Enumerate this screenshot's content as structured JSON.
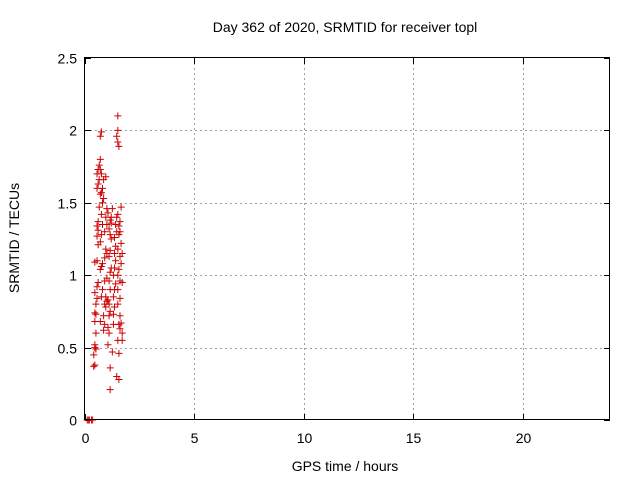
{
  "chart_data": {
    "type": "scatter",
    "title": "Day 362 of 2020, SRMTID for receiver topl",
    "xlabel": "GPS time / hours",
    "ylabel": "SRMTID / TECUs",
    "xlim": [
      0,
      24
    ],
    "ylim": [
      0,
      2.5
    ],
    "x_ticks": [
      0,
      5,
      10,
      15,
      20
    ],
    "x_tick_labels": [
      "0",
      "5",
      "10",
      "15",
      "20"
    ],
    "y_ticks": [
      0,
      0.5,
      1,
      1.5,
      2,
      2.5
    ],
    "y_tick_labels": [
      "0",
      "0.5",
      "1",
      "1.5",
      "2",
      "2.5"
    ],
    "grid": true,
    "marker": "+",
    "series": [
      {
        "name": "SRMTID",
        "color": "#cc0000",
        "points": [
          [
            0.1,
            0.0
          ],
          [
            0.15,
            0.0
          ],
          [
            0.2,
            0.0
          ],
          [
            0.3,
            0.0
          ],
          [
            0.35,
            0.0
          ],
          [
            0.4,
            0.37
          ],
          [
            0.45,
            0.38
          ],
          [
            0.4,
            0.45
          ],
          [
            0.45,
            0.5
          ],
          [
            0.5,
            0.49
          ],
          [
            0.45,
            0.52
          ],
          [
            0.5,
            0.6
          ],
          [
            0.45,
            0.68
          ],
          [
            0.5,
            0.73
          ],
          [
            0.45,
            0.74
          ],
          [
            0.5,
            0.8
          ],
          [
            0.55,
            0.84
          ],
          [
            0.45,
            0.88
          ],
          [
            0.55,
            0.92
          ],
          [
            0.6,
            0.95
          ],
          [
            0.45,
            1.09
          ],
          [
            0.55,
            1.1
          ],
          [
            0.6,
            1.21
          ],
          [
            0.55,
            1.27
          ],
          [
            0.6,
            1.31
          ],
          [
            0.55,
            1.34
          ],
          [
            0.6,
            1.37
          ],
          [
            0.65,
            1.47
          ],
          [
            0.55,
            1.6
          ],
          [
            0.6,
            1.63
          ],
          [
            0.65,
            1.66
          ],
          [
            0.55,
            1.7
          ],
          [
            0.6,
            1.73
          ],
          [
            0.65,
            1.76
          ],
          [
            0.7,
            1.8
          ],
          [
            0.7,
            1.73
          ],
          [
            0.75,
            1.7
          ],
          [
            0.7,
            1.96
          ],
          [
            0.75,
            1.99
          ],
          [
            0.7,
            0.68
          ],
          [
            0.75,
            0.85
          ],
          [
            0.8,
            0.9
          ],
          [
            0.7,
            1.04
          ],
          [
            0.75,
            1.06
          ],
          [
            0.8,
            1.08
          ],
          [
            0.7,
            1.23
          ],
          [
            0.75,
            1.28
          ],
          [
            0.8,
            1.35
          ],
          [
            0.75,
            1.42
          ],
          [
            0.8,
            1.5
          ],
          [
            0.85,
            1.53
          ],
          [
            0.7,
            1.56
          ],
          [
            0.8,
            1.6
          ],
          [
            0.85,
            1.66
          ],
          [
            0.75,
            1.57
          ],
          [
            0.85,
            0.62
          ],
          [
            0.9,
            0.66
          ],
          [
            0.85,
            0.72
          ],
          [
            0.95,
            0.78
          ],
          [
            0.9,
            0.8
          ],
          [
            1.0,
            0.82
          ],
          [
            0.95,
            0.85
          ],
          [
            0.9,
            0.96
          ],
          [
            1.0,
            0.98
          ],
          [
            0.9,
            1.12
          ],
          [
            1.0,
            1.15
          ],
          [
            0.95,
            1.18
          ],
          [
            0.9,
            1.3
          ],
          [
            1.0,
            1.35
          ],
          [
            0.95,
            1.4
          ],
          [
            1.05,
            1.43
          ],
          [
            1.0,
            1.46
          ],
          [
            0.95,
            1.68
          ],
          [
            1.05,
            0.52
          ],
          [
            1.1,
            0.6
          ],
          [
            1.05,
            0.64
          ],
          [
            1.1,
            0.72
          ],
          [
            1.15,
            0.75
          ],
          [
            1.1,
            0.8
          ],
          [
            1.05,
            0.83
          ],
          [
            1.15,
            0.9
          ],
          [
            1.1,
            0.96
          ],
          [
            1.15,
            1.02
          ],
          [
            1.2,
            1.05
          ],
          [
            1.1,
            1.13
          ],
          [
            1.15,
            1.17
          ],
          [
            1.2,
            1.25
          ],
          [
            1.15,
            1.28
          ],
          [
            1.1,
            1.32
          ],
          [
            1.2,
            1.36
          ],
          [
            1.15,
            1.38
          ],
          [
            1.2,
            1.4
          ],
          [
            1.25,
            1.46
          ],
          [
            1.15,
            0.21
          ],
          [
            1.15,
            0.36
          ],
          [
            1.25,
            0.47
          ],
          [
            1.3,
            0.66
          ],
          [
            1.3,
            0.73
          ],
          [
            1.35,
            0.78
          ],
          [
            1.3,
            0.85
          ],
          [
            1.35,
            0.9
          ],
          [
            1.4,
            0.94
          ],
          [
            1.3,
            1.0
          ],
          [
            1.35,
            1.05
          ],
          [
            1.4,
            1.1
          ],
          [
            1.35,
            1.15
          ],
          [
            1.4,
            1.2
          ],
          [
            1.35,
            1.26
          ],
          [
            1.45,
            1.3
          ],
          [
            1.4,
            1.35
          ],
          [
            1.45,
            1.4
          ],
          [
            1.5,
            1.42
          ],
          [
            1.5,
            2.1
          ],
          [
            1.5,
            2.0
          ],
          [
            1.45,
            1.96
          ],
          [
            1.5,
            1.92
          ],
          [
            1.55,
            1.89
          ],
          [
            1.45,
            0.3
          ],
          [
            1.55,
            0.28
          ],
          [
            1.55,
            0.46
          ],
          [
            1.5,
            0.55
          ],
          [
            1.6,
            0.63
          ],
          [
            1.55,
            0.66
          ],
          [
            1.65,
            0.67
          ],
          [
            1.6,
            0.72
          ],
          [
            1.5,
            0.8
          ],
          [
            1.6,
            0.84
          ],
          [
            1.5,
            0.9
          ],
          [
            1.6,
            0.96
          ],
          [
            1.5,
            1.0
          ],
          [
            1.55,
            1.04
          ],
          [
            1.65,
            1.08
          ],
          [
            1.6,
            1.13
          ],
          [
            1.5,
            1.18
          ],
          [
            1.65,
            1.22
          ],
          [
            1.55,
            1.28
          ],
          [
            1.6,
            1.3
          ],
          [
            1.55,
            1.34
          ],
          [
            1.6,
            1.37
          ],
          [
            1.65,
            1.47
          ],
          [
            1.7,
            0.55
          ],
          [
            1.7,
            0.6
          ],
          [
            1.7,
            0.95
          ],
          [
            1.7,
            1.15
          ]
        ]
      }
    ]
  }
}
